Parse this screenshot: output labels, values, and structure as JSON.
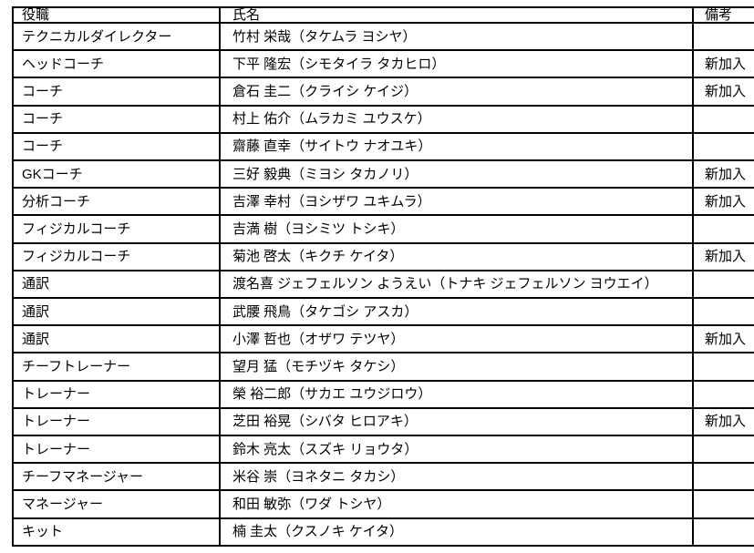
{
  "colors": {
    "border": "#000000",
    "text": "#000000",
    "background": "#ffffff"
  },
  "table": {
    "columns": [
      {
        "key": "role",
        "label": "役職"
      },
      {
        "key": "name",
        "label": "氏名"
      },
      {
        "key": "note",
        "label": "備考"
      }
    ],
    "new_member_label": "新加入",
    "rows": [
      {
        "role": "テクニカルダイレクター",
        "name": "竹村 栄哉（タケムラ ヨシヤ）",
        "note": ""
      },
      {
        "role": "ヘッドコーチ",
        "name": "下平 隆宏（シモタイラ タカヒロ）",
        "note": "新加入"
      },
      {
        "role": "コーチ",
        "name": "倉石 圭二（クライシ ケイジ）",
        "note": "新加入"
      },
      {
        "role": "コーチ",
        "name": "村上 佑介（ムラカミ ユウスケ）",
        "note": ""
      },
      {
        "role": "コーチ",
        "name": "齋藤 直幸（サイトウ ナオユキ）",
        "note": ""
      },
      {
        "role": "GKコーチ",
        "name": "三好 毅典（ミヨシ タカノリ）",
        "note": "新加入"
      },
      {
        "role": "分析コーチ",
        "name": "吉澤 幸村（ヨシザワ ユキムラ）",
        "note": "新加入"
      },
      {
        "role": "フィジカルコーチ",
        "name": "吉満 樹（ヨシミツ トシキ）",
        "note": ""
      },
      {
        "role": "フィジカルコーチ",
        "name": "菊池 啓太（キクチ ケイタ）",
        "note": "新加入"
      },
      {
        "role": "通訳",
        "name": "渡名喜 ジェフェルソン ようえい（トナキ ジェフェルソン ヨウエイ）",
        "note": ""
      },
      {
        "role": "通訳",
        "name": "武腰 飛鳥（タケゴシ アスカ）",
        "note": ""
      },
      {
        "role": "通訳",
        "name": "小澤 哲也（オザワ テツヤ）",
        "note": "新加入"
      },
      {
        "role": "チーフトレーナー",
        "name": "望月 猛（モチヅキ タケシ）",
        "note": ""
      },
      {
        "role": "トレーナー",
        "name": "榮 裕二郎（サカエ ユウジロウ）",
        "note": ""
      },
      {
        "role": "トレーナー",
        "name": "芝田 裕晃（シバタ ヒロアキ）",
        "note": "新加入"
      },
      {
        "role": "トレーナー",
        "name": "鈴木 亮太（スズキ リョウタ）",
        "note": ""
      },
      {
        "role": "チーフマネージャー",
        "name": "米谷 崇（ヨネタニ タカシ）",
        "note": ""
      },
      {
        "role": "マネージャー",
        "name": "和田 敏弥（ワダ トシヤ）",
        "note": ""
      },
      {
        "role": "キット",
        "name": "楠 圭太（クスノキ ケイタ）",
        "note": ""
      }
    ]
  }
}
